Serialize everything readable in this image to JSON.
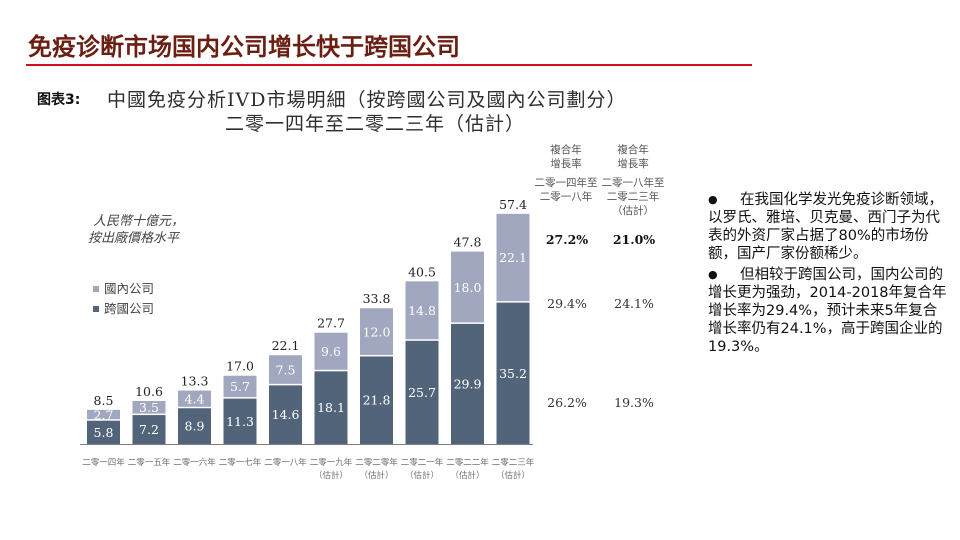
{
  "page": {
    "title": "免疫诊断市场国内公司增长快于跨国公司",
    "figure_label": "图表3:",
    "title_color": "#6b1e12",
    "accent_color": "#d0101c"
  },
  "chart_data": {
    "type": "bar",
    "stacked": true,
    "title": "中國免疫分析IVD市場明細（按跨國公司及國內公司劃分）",
    "subtitle": "二零一四年至二零二三年（估計）",
    "ylabel_lines": [
      "人民幣十億元，",
      "按出廠價格水平"
    ],
    "xlabel": "",
    "ylim": [
      0,
      60
    ],
    "grid": false,
    "legend_position": "left",
    "legend_items": [
      "國內公司",
      "跨國公司"
    ],
    "categories": [
      "二零一四年",
      "二零一五年",
      "二零一六年",
      "二零一七年",
      "二零一八年",
      "二零一九年",
      "二零二零年",
      "二零二一年",
      "二零二二年",
      "二零二三年"
    ],
    "category_notes": [
      "",
      "",
      "",
      "",
      "",
      "（估計）",
      "（估計）",
      "（估計）",
      "（估計）",
      "（估計）"
    ],
    "series": [
      {
        "name": "跨國公司",
        "color": "#52647a",
        "values": [
          5.8,
          7.2,
          8.9,
          11.3,
          14.6,
          18.1,
          21.8,
          25.7,
          29.9,
          35.2
        ],
        "value_labels": [
          "5.8",
          "7.2",
          "8.9",
          "11.3",
          "14.6",
          "18.1",
          "21.8",
          "25.7",
          "29.9",
          "35.2"
        ]
      },
      {
        "name": "國內公司",
        "color": "#a0a7be",
        "values": [
          2.7,
          3.5,
          4.4,
          5.7,
          7.5,
          9.6,
          12.0,
          14.8,
          18.0,
          22.1
        ],
        "value_labels": [
          "2.7",
          "3.5",
          "4.4",
          "5.7",
          "7.5",
          "9.6",
          "12.0",
          "14.8",
          "18.0",
          "22.1"
        ]
      }
    ],
    "totals": [
      8.5,
      10.6,
      13.3,
      17.0,
      22.1,
      27.7,
      33.8,
      40.5,
      47.8,
      57.4
    ],
    "total_labels": [
      "8.5",
      "10.6",
      "13.3",
      "17.0",
      "22.1",
      "27.7",
      "33.8",
      "40.5",
      "47.8",
      "57.4"
    ],
    "cagr_table": {
      "columns": [
        {
          "header": [
            "複合年",
            "增長率"
          ],
          "period": [
            "二零一四年至",
            "二零一八年"
          ]
        },
        {
          "header": [
            "複合年",
            "增長率"
          ],
          "period": [
            "二零一八年至",
            "二零二三年",
            "（估計）"
          ]
        }
      ],
      "rows": {
        "total": [
          "27.2%",
          "21.0%"
        ],
        "domestic": [
          "29.4%",
          "24.1%"
        ],
        "multinational": [
          "26.2%",
          "19.3%"
        ]
      }
    }
  },
  "commentary": {
    "bullet_icon": "●",
    "bullets": [
      "在我国化学发光免疫诊断领域，以罗氏、雅培、贝克曼、西门子为代表的外资厂家占据了80%的市场份额，国产厂家份额稀少。",
      "但相较于跨国公司，国内公司的增长更为强劲，2014-2018年复合年增长率为29.4%，预计未来5年复合增长率仍有24.1%，高于跨国企业的19.3%。"
    ]
  }
}
